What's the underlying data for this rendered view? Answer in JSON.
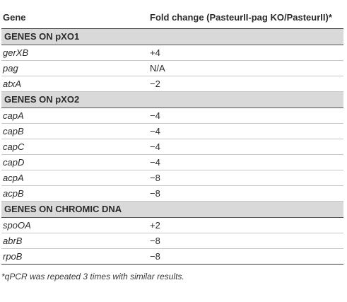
{
  "header": {
    "gene": "Gene",
    "fold_change": "Fold change (PasteurII-pag KO/PasteurII)*"
  },
  "sections": [
    {
      "title": "GENES ON pXO1",
      "rows": [
        {
          "gene": "gerXB",
          "value": "+4"
        },
        {
          "gene": "pag",
          "value": "N/A"
        },
        {
          "gene": "atxA",
          "value": "−2"
        }
      ]
    },
    {
      "title": "GENES ON pXO2",
      "rows": [
        {
          "gene": "capA",
          "value": "−4"
        },
        {
          "gene": "capB",
          "value": "−4"
        },
        {
          "gene": "capC",
          "value": "−4"
        },
        {
          "gene": "capD",
          "value": "−4"
        },
        {
          "gene": "acpA",
          "value": "−8"
        },
        {
          "gene": "acpB",
          "value": "−8"
        }
      ]
    },
    {
      "title": "GENES ON CHROMIC DNA",
      "rows": [
        {
          "gene": "spoOA",
          "value": "+2"
        },
        {
          "gene": "abrB",
          "value": "−8"
        },
        {
          "gene": "rpoB",
          "value": "−8"
        }
      ]
    }
  ],
  "footnote": "*qPCR was repeated 3 times with similar results."
}
